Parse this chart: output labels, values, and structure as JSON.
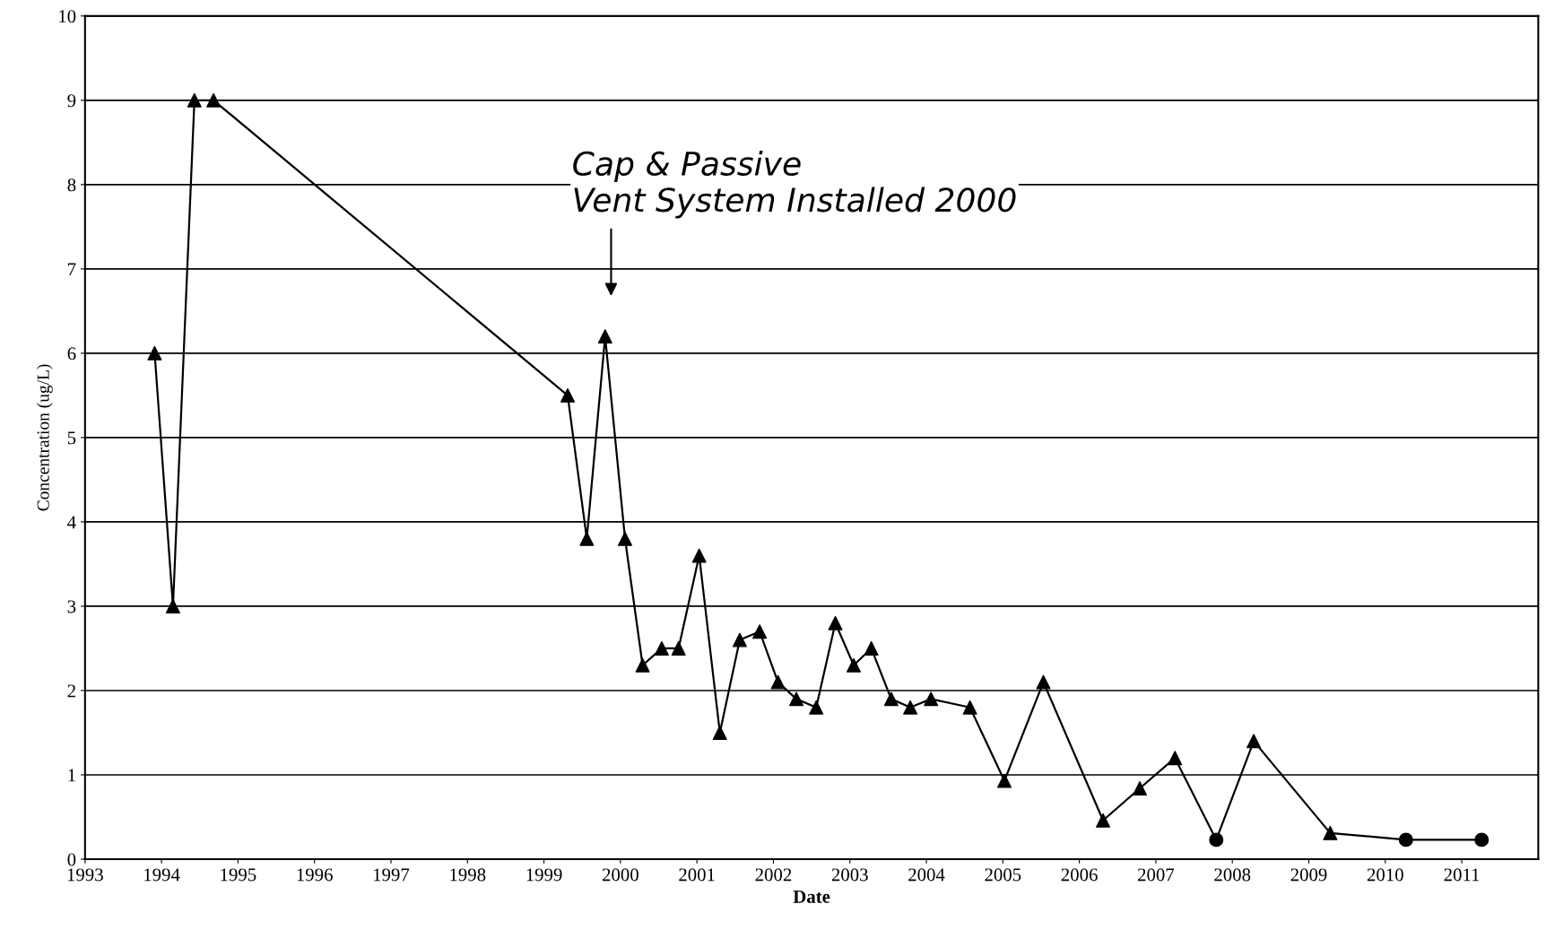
{
  "chart_data": {
    "type": "line",
    "xlabel": "Date",
    "ylabel": "Concentration (ug/L)",
    "xlim": [
      1993,
      2012
    ],
    "xticks": [
      1993,
      1994,
      1995,
      1996,
      1997,
      1998,
      1999,
      2000,
      2001,
      2002,
      2003,
      2004,
      2005,
      2006,
      2007,
      2008,
      2009,
      2010,
      2011
    ],
    "ylim": [
      0,
      10
    ],
    "yticks": [
      0,
      1,
      2,
      3,
      4,
      5,
      6,
      7,
      8,
      9,
      10
    ],
    "grid": "y",
    "series": [
      {
        "color": "#000000",
        "marker": "none",
        "x": [
          1993.91,
          1994.15,
          1994.43,
          1994.68,
          1999.31,
          1999.56,
          1999.8,
          2000.06,
          2000.29,
          2000.54,
          2000.76,
          2001.03,
          2001.3,
          2001.56,
          2001.82,
          2002.06,
          2002.3,
          2002.56,
          2002.81,
          2003.05,
          2003.28,
          2003.54,
          2003.79,
          2004.06,
          2004.57,
          2005.02,
          2005.53,
          2006.31,
          2006.79,
          2007.25,
          2007.79,
          2008.28,
          2009.28,
          2010.27,
          2011.26
        ],
        "values": [
          6.0,
          3.0,
          9.0,
          9.0,
          5.5,
          3.8,
          6.2,
          3.8,
          2.3,
          2.5,
          2.5,
          3.6,
          1.5,
          2.6,
          2.7,
          2.1,
          1.9,
          1.8,
          2.8,
          2.3,
          2.5,
          1.9,
          1.8,
          1.9,
          1.8,
          0.93,
          2.1,
          0.46,
          0.84,
          1.2,
          0.23,
          1.4,
          0.31,
          0.23,
          0.23
        ]
      },
      {
        "type": "scatter",
        "color": "#000000",
        "marker": "triangle",
        "x": [
          1993.91,
          1994.15,
          1994.43,
          1994.68,
          1999.31,
          1999.56,
          1999.8,
          2000.06,
          2000.29,
          2000.54,
          2000.76,
          2001.03,
          2001.3,
          2001.56,
          2001.82,
          2002.06,
          2002.3,
          2002.56,
          2002.81,
          2003.05,
          2003.28,
          2003.54,
          2003.79,
          2004.06,
          2004.57,
          2005.02,
          2005.53,
          2006.31,
          2006.79,
          2007.25,
          2008.28,
          2009.28
        ],
        "values": [
          6.0,
          3.0,
          9.0,
          9.0,
          5.5,
          3.8,
          6.2,
          3.8,
          2.3,
          2.5,
          2.5,
          3.6,
          1.5,
          2.6,
          2.7,
          2.1,
          1.9,
          1.8,
          2.8,
          2.3,
          2.5,
          1.9,
          1.8,
          1.9,
          1.8,
          0.93,
          2.1,
          0.46,
          0.84,
          1.2,
          1.4,
          0.31
        ]
      },
      {
        "type": "scatter",
        "color": "#000000",
        "marker": "circle",
        "x": [
          2007.79,
          2010.27,
          2011.26
        ],
        "values": [
          0.23,
          0.23,
          0.23
        ]
      }
    ],
    "annotations": [
      "Cap & Passive\nVent System Installed 2000"
    ]
  }
}
